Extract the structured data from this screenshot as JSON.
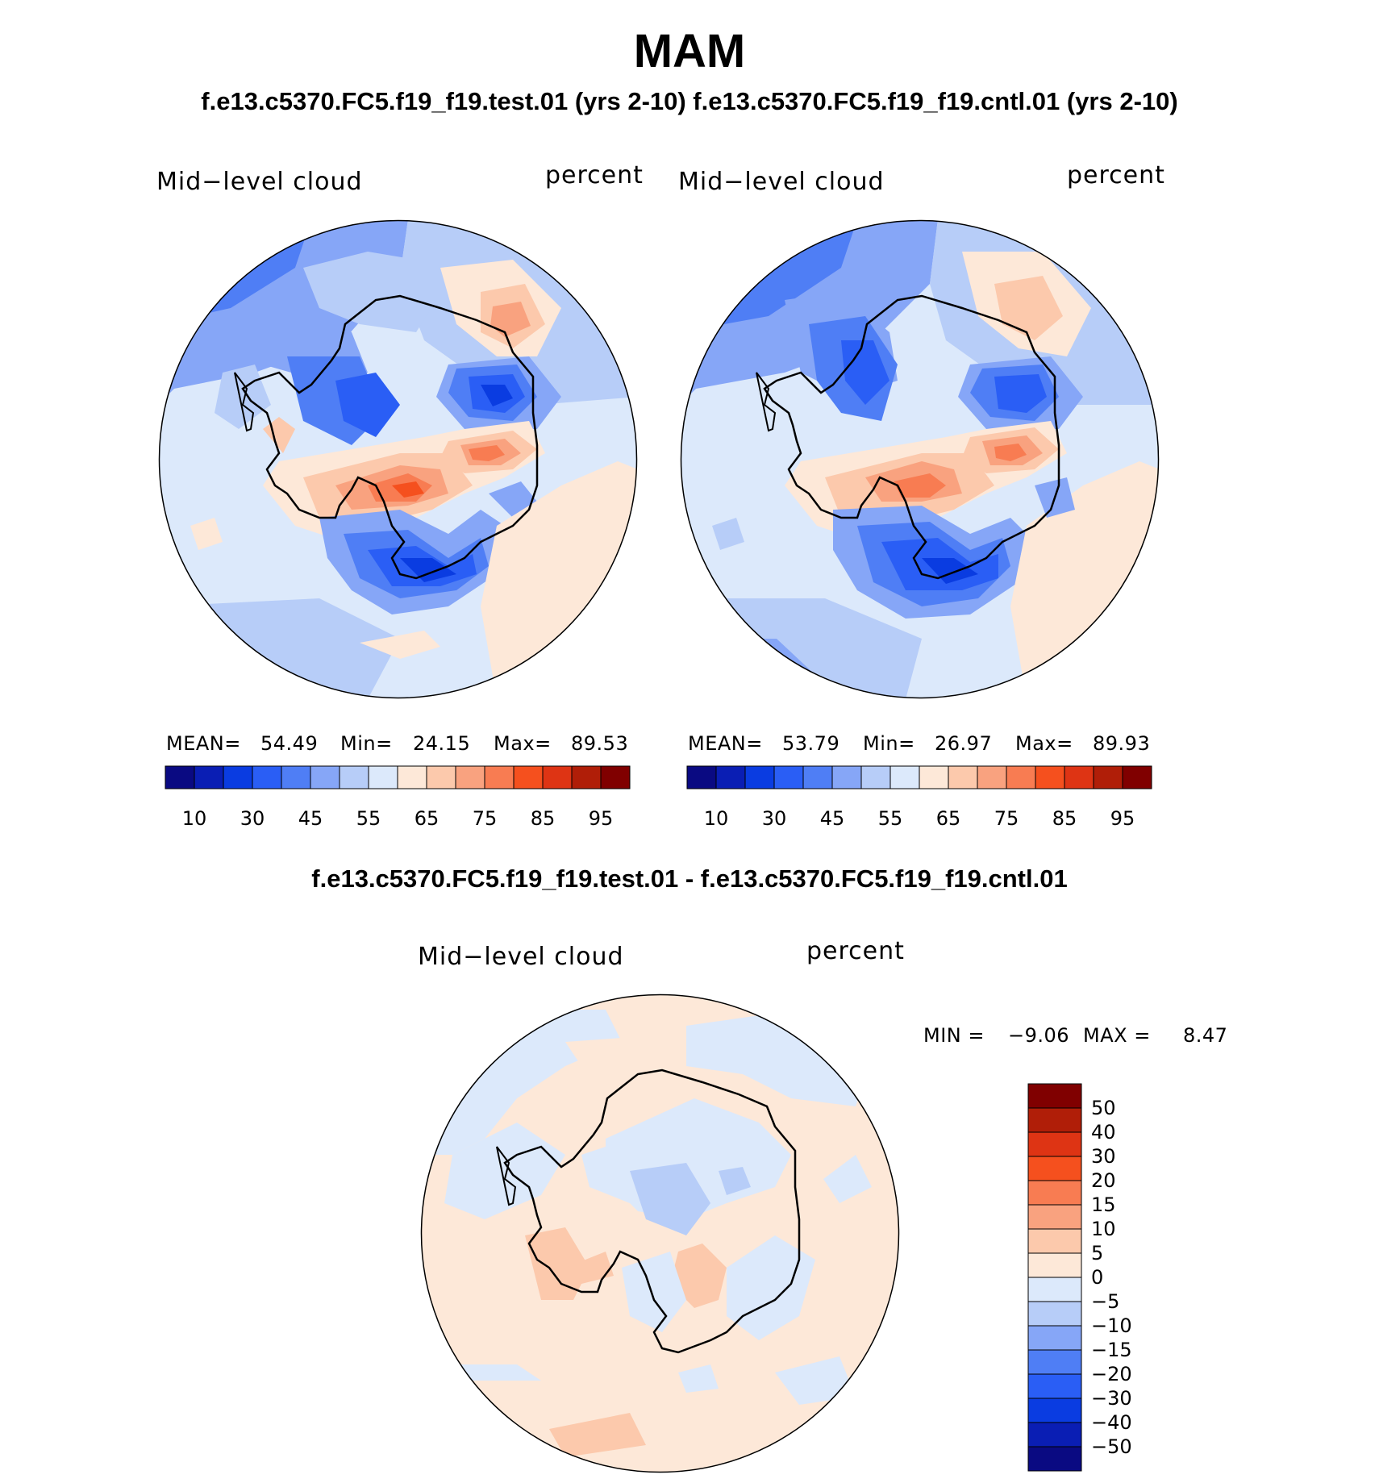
{
  "figure": {
    "season": "MAM",
    "header": "f.e13.c5370.FC5.f19_f19.test.01 (yrs 2-10) f.e13.c5370.FC5.f19_f19.cntl.01 (yrs 2-10)",
    "diff_header": "f.e13.c5370.FC5.f19_f19.test.01 - f.e13.c5370.FC5.f19_f19.cntl.01"
  },
  "panels": {
    "test": {
      "variable": "Mid−level cloud",
      "units": "percent",
      "mean_label": "MEAN=",
      "mean": "54.49",
      "min_label": "Min=",
      "min": "24.15",
      "max_label": "Max=",
      "max": "89.53"
    },
    "cntl": {
      "variable": "Mid−level cloud",
      "units": "percent",
      "mean_label": "MEAN=",
      "mean": "53.79",
      "min_label": "Min=",
      "min": "26.97",
      "max_label": "Max=",
      "max": "89.93"
    },
    "diff": {
      "variable": "Mid−level cloud",
      "units": "percent",
      "min_label": "MIN =",
      "min": "−9.06",
      "max_label": "MAX =",
      "max": "8.47"
    }
  },
  "colorbars": {
    "abs_colors": [
      "#0a0a82",
      "#0a1eb4",
      "#0a3ce1",
      "#2a5ef5",
      "#4f7ef5",
      "#86a6f7",
      "#b7cdf8",
      "#dce9fb",
      "#fde8d8",
      "#fcc9ac",
      "#f9a27f",
      "#f87c52",
      "#f5501e",
      "#de3414",
      "#b01e08",
      "#800000"
    ],
    "abs_labels": [
      "10",
      "30",
      "45",
      "55",
      "65",
      "75",
      "85",
      "95"
    ],
    "diff_colors": [
      "#800000",
      "#b01e08",
      "#de3414",
      "#f5501e",
      "#f87c52",
      "#f9a27f",
      "#fcc9ac",
      "#fde8d8",
      "#dce9fb",
      "#b7cdf8",
      "#86a6f7",
      "#4f7ef5",
      "#2a5ef5",
      "#0a3ce1",
      "#0a1eb4",
      "#0a0a82"
    ],
    "diff_labels": [
      "50",
      "40",
      "30",
      "20",
      "15",
      "10",
      "5",
      "0",
      "−5",
      "−10",
      "−15",
      "−20",
      "−30",
      "−40",
      "−50"
    ]
  }
}
